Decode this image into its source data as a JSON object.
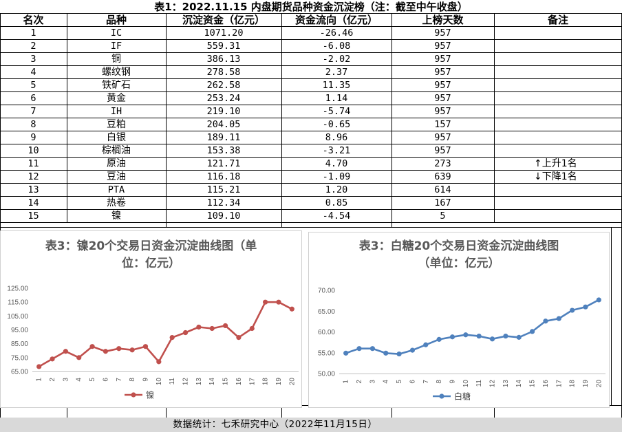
{
  "title": "表1：2022.11.15 内盘期货品种资金沉淀榜（注：截至中午收盘）",
  "headers": {
    "rank": "名次",
    "variety": "品种",
    "capital": "沉淀资金（亿元）",
    "flow": "资金流向（亿元）",
    "days": "上榜天数",
    "note": "备注"
  },
  "rows": [
    {
      "rank": "1",
      "variety": "IC",
      "capital": "1071.20",
      "flow": "-26.46",
      "days": "957"
    },
    {
      "rank": "2",
      "variety": "IF",
      "capital": "559.31",
      "flow": "-6.08",
      "days": "957"
    },
    {
      "rank": "3",
      "variety": "铜",
      "capital": "386.13",
      "flow": "-2.02",
      "days": "957"
    },
    {
      "rank": "4",
      "variety": "螺纹钢",
      "capital": "278.58",
      "flow": "2.37",
      "days": "957"
    },
    {
      "rank": "5",
      "variety": "铁矿石",
      "capital": "262.58",
      "flow": "11.35",
      "days": "957"
    },
    {
      "rank": "6",
      "variety": "黄金",
      "capital": "253.24",
      "flow": "1.14",
      "days": "957"
    },
    {
      "rank": "7",
      "variety": "IH",
      "capital": "219.10",
      "flow": "-5.74",
      "days": "957"
    },
    {
      "rank": "8",
      "variety": "豆粕",
      "capital": "204.05",
      "flow": "-0.65",
      "days": "157"
    },
    {
      "rank": "9",
      "variety": "白银",
      "capital": "189.11",
      "flow": "8.96",
      "days": "957"
    },
    {
      "rank": "10",
      "variety": "棕榈油",
      "capital": "153.38",
      "flow": "-3.21",
      "days": "957"
    },
    {
      "rank": "11",
      "variety": "原油",
      "capital": "121.71",
      "flow": "4.70",
      "days": "273"
    },
    {
      "rank": "12",
      "variety": "豆油",
      "capital": "116.18",
      "flow": "-1.09",
      "days": "639"
    },
    {
      "rank": "13",
      "variety": "PTA",
      "capital": "115.21",
      "flow": "1.20",
      "days": "614"
    },
    {
      "rank": "14",
      "variety": "热卷",
      "capital": "112.34",
      "flow": "0.85",
      "days": "167"
    },
    {
      "rank": "15",
      "variety": "镍",
      "capital": "109.10",
      "flow": "-4.54",
      "days": "5"
    }
  ],
  "notes": {
    "up": "上升1名",
    "down": "下降1名"
  },
  "footer": "数据统计：七禾研究中心（2022年11月15日）",
  "chart_data": [
    {
      "type": "line",
      "title_line1": "表3：镍20个交易日资金沉淀曲线图（单",
      "title_line2": "位：亿元）",
      "x": [
        1,
        2,
        3,
        4,
        5,
        6,
        7,
        8,
        9,
        10,
        11,
        12,
        13,
        14,
        15,
        16,
        17,
        18,
        19,
        20
      ],
      "x_labels": [
        "1",
        "2",
        "3",
        "4",
        "5",
        "6",
        "7",
        "8",
        "9",
        "10",
        "11",
        "12",
        "13",
        "14",
        "15",
        "16",
        "17",
        "18",
        "19",
        "20"
      ],
      "series": [
        {
          "name": "镍",
          "color": "#c0504d",
          "values": [
            68.5,
            74,
            79.5,
            75,
            83,
            79.5,
            81.5,
            80.5,
            83,
            72,
            89.5,
            93,
            97,
            96,
            98,
            89.5,
            96,
            115,
            115,
            110
          ]
        }
      ],
      "ylim": [
        65,
        125
      ],
      "y_ticks": [
        65,
        75,
        85,
        95,
        105,
        115,
        125
      ],
      "y_tick_labels": [
        "65.00",
        "75.00",
        "85.00",
        "95.00",
        "105.00",
        "115.00",
        "125.00"
      ],
      "legend": "bottom"
    },
    {
      "type": "line",
      "title_line1": "表3：白糖20个交易日资金沉淀曲线图",
      "title_line2": "（单位：亿元）",
      "x": [
        1,
        2,
        3,
        4,
        5,
        6,
        7,
        8,
        9,
        10,
        11,
        12,
        13,
        14,
        15,
        16,
        17,
        18,
        19,
        20
      ],
      "x_labels": [
        "1",
        "2",
        "3",
        "4",
        "5",
        "6",
        "7",
        "8",
        "9",
        "10",
        "11",
        "12",
        "13",
        "14",
        "15",
        "16",
        "17",
        "18",
        "19",
        "20"
      ],
      "series": [
        {
          "name": "白糖",
          "color": "#4f81bd",
          "values": [
            54.9,
            56,
            56,
            54.9,
            54.7,
            55.6,
            56.9,
            58.2,
            58.8,
            59.3,
            59,
            58.3,
            59,
            58.7,
            60.1,
            62.6,
            63.2,
            65.2,
            66,
            67.7
          ]
        }
      ],
      "ylim": [
        50,
        70
      ],
      "y_ticks": [
        50,
        55,
        60,
        65,
        70
      ],
      "y_tick_labels": [
        "50.00",
        "55.00",
        "60.00",
        "65.00",
        "70.00"
      ],
      "legend": "bottom"
    }
  ]
}
